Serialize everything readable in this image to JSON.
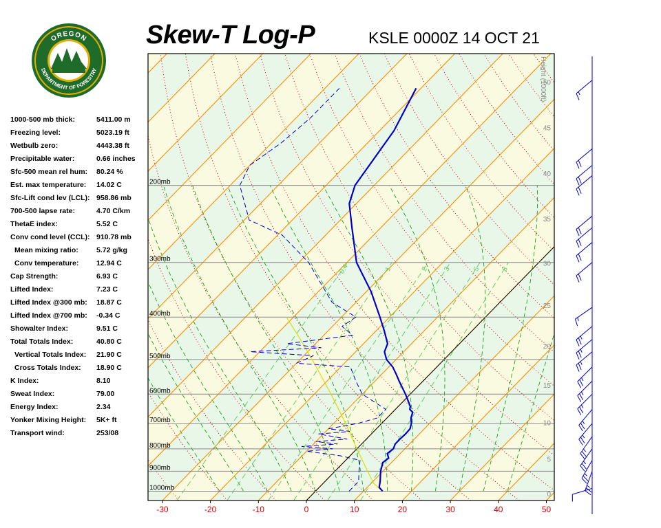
{
  "header": {
    "title": "Skew-T Log-P",
    "station_time": "KSLE 0000Z 14 OCT 21"
  },
  "logo": {
    "top_text": "OREGON",
    "bottom_text": "DEPARTMENT OF FORESTRY"
  },
  "indices": [
    {
      "label": "1000-500 mb thick:",
      "value": "5411.00 m",
      "indent": false
    },
    {
      "label": "Freezing level:",
      "value": "5023.19 ft",
      "indent": false
    },
    {
      "label": "Wetbulb zero:",
      "value": "4443.38 ft",
      "indent": false
    },
    {
      "label": "Precipitable water:",
      "value": "0.66 inches",
      "indent": false
    },
    {
      "label": "Sfc-500 mean rel hum:",
      "value": "80.24 %",
      "indent": false
    },
    {
      "label": "Est. max temperature:",
      "value": "14.02 C",
      "indent": false
    },
    {
      "label": "Sfc-Lift cond lev (LCL):",
      "value": "958.86 mb",
      "indent": false
    },
    {
      "label": "700-500 lapse rate:",
      "value": "4.70 C/km",
      "indent": false
    },
    {
      "label": "ThetaE index:",
      "value": "5.52 C",
      "indent": false
    },
    {
      "label": "Conv cond level (CCL):",
      "value": "910.78 mb",
      "indent": false
    },
    {
      "label": "Mean mixing ratio:",
      "value": "5.72 g/kg",
      "indent": true
    },
    {
      "label": "Conv temperature:",
      "value": "12.94 C",
      "indent": true
    },
    {
      "label": "Cap Strength:",
      "value": "6.93 C",
      "indent": false
    },
    {
      "label": "Lifted Index:",
      "value": "7.23 C",
      "indent": false
    },
    {
      "label": "Lifted Index @300 mb:",
      "value": "18.87 C",
      "indent": false
    },
    {
      "label": "Lifted Index @700 mb:",
      "value": "-0.34 C",
      "indent": false
    },
    {
      "label": "Showalter Index:",
      "value": "9.51 C",
      "indent": false
    },
    {
      "label": "Total Totals Index:",
      "value": "40.80 C",
      "indent": false
    },
    {
      "label": "Vertical Totals Index:",
      "value": "21.90 C",
      "indent": true
    },
    {
      "label": "Cross Totals Index:",
      "value": "18.90 C",
      "indent": true
    },
    {
      "label": "K Index:",
      "value": "8.10",
      "indent": false
    },
    {
      "label": "Sweat Index:",
      "value": "79.00",
      "indent": false
    },
    {
      "label": "Energy Index:",
      "value": "2.34",
      "indent": false
    },
    {
      "label": "Yonker Mixing Height:",
      "value": "5K+ ft",
      "indent": false
    },
    {
      "label": "Transport wind:",
      "value": "253/08",
      "indent": false
    }
  ],
  "colors": {
    "temperature": "#0000cc",
    "dewpoint": "#0000cc",
    "parcel": "#dddd00",
    "isotherm": "#ff8c00",
    "dry_adiabat": "#cc0000",
    "moist_adiabat": "#009900",
    "mixing_ratio": "#66cc66",
    "isobar": "#888888",
    "x_tick_labels": "#cc0000",
    "height_labels": "#888888",
    "background_band_a": "#e8f7e8",
    "background_band_b": "#fafae0"
  },
  "chart_data": {
    "type": "line",
    "chart_kind": "skew-t log-p",
    "x_axis": {
      "unit": "C",
      "ticks": [
        -30,
        -20,
        -10,
        0,
        10,
        20,
        30,
        40,
        50
      ]
    },
    "y_axis": {
      "scale": "log",
      "unit": "mb",
      "range": [
        1050,
        100
      ],
      "isobar_labels": [
        {
          "p": 1000,
          "label": "1000mb"
        },
        {
          "p": 900,
          "label": "900mb"
        },
        {
          "p": 800,
          "label": "800mb"
        },
        {
          "p": 700,
          "label": "700mb"
        },
        {
          "p": 600,
          "label": "600mb"
        },
        {
          "p": 500,
          "label": "500mb"
        },
        {
          "p": 400,
          "label": "400mb"
        },
        {
          "p": 300,
          "label": "300mb"
        },
        {
          "p": 200,
          "label": "200mb"
        }
      ]
    },
    "height_axis": {
      "title": "Height (1000ft)",
      "labels": [
        "0",
        "5",
        "10",
        "15",
        "20",
        "25",
        "30",
        "35",
        "40",
        "45",
        "50"
      ]
    },
    "mixing_ratio_labels": [
      "0.4",
      "1",
      "2",
      "3",
      "5",
      "8"
    ],
    "series": [
      {
        "key": "temperature",
        "points": [
          [
            1000,
            14
          ],
          [
            980,
            12.5
          ],
          [
            950,
            11.5
          ],
          [
            900,
            9.5
          ],
          [
            860,
            8.2
          ],
          [
            840,
            8.5
          ],
          [
            820,
            7.3
          ],
          [
            800,
            7.6
          ],
          [
            780,
            7.0
          ],
          [
            760,
            7.0
          ],
          [
            740,
            7.1
          ],
          [
            720,
            7.0
          ],
          [
            700,
            6.2
          ],
          [
            680,
            5.0
          ],
          [
            660,
            4.2
          ],
          [
            650,
            3.0
          ],
          [
            640,
            2.5
          ],
          [
            600,
            -1.0
          ],
          [
            560,
            -5.0
          ],
          [
            540,
            -7.0
          ],
          [
            520,
            -9.2
          ],
          [
            500,
            -12.0
          ],
          [
            480,
            -14.0
          ],
          [
            460,
            -15.0
          ],
          [
            430,
            -18.3
          ],
          [
            400,
            -22.0
          ],
          [
            350,
            -29.0
          ],
          [
            300,
            -38.0
          ],
          [
            250,
            -46.0
          ],
          [
            220,
            -51.5
          ],
          [
            200,
            -54.0
          ],
          [
            150,
            -57.0
          ],
          [
            120,
            -61.0
          ]
        ]
      },
      {
        "key": "dewpoint",
        "points": [
          [
            1000,
            7.0
          ],
          [
            950,
            7.0
          ],
          [
            900,
            5.0
          ],
          [
            850,
            3.0
          ],
          [
            830,
            -2.0
          ],
          [
            810,
            -10.0
          ],
          [
            800,
            -5.0
          ],
          [
            790,
            -12.0
          ],
          [
            780,
            -5.0
          ],
          [
            770,
            -10.0
          ],
          [
            760,
            -4.0
          ],
          [
            740,
            -11.0
          ],
          [
            730,
            -5.0
          ],
          [
            720,
            -10.0
          ],
          [
            700,
            -5.0
          ],
          [
            680,
            -2.0
          ],
          [
            650,
            -2.0
          ],
          [
            600,
            -10.0
          ],
          [
            560,
            -14.0
          ],
          [
            520,
            -18.0
          ],
          [
            510,
            -30.0
          ],
          [
            490,
            -28.0
          ],
          [
            480,
            -42.0
          ],
          [
            470,
            -28.0
          ],
          [
            460,
            -36.0
          ],
          [
            440,
            -24.0
          ],
          [
            420,
            -28.0
          ],
          [
            400,
            -27.0
          ],
          [
            370,
            -35.0
          ],
          [
            300,
            -48.0
          ],
          [
            260,
            -59.0
          ],
          [
            240,
            -69.0
          ],
          [
            200,
            -78.0
          ],
          [
            180,
            -80.0
          ],
          [
            160,
            -78.0
          ],
          [
            140,
            -77.0
          ],
          [
            120,
            -77.0
          ]
        ]
      },
      {
        "key": "parcel",
        "points": [
          [
            1000,
            14.0
          ],
          [
            959,
            10.5
          ],
          [
            900,
            6.8
          ],
          [
            850,
            3.5
          ],
          [
            800,
            0.0
          ],
          [
            700,
            -7.5
          ],
          [
            600,
            -16.5
          ],
          [
            500,
            -27.5
          ],
          [
            450,
            -34.0
          ],
          [
            400,
            -41.5
          ]
        ]
      }
    ],
    "wind_barbs": [
      {
        "p": 985,
        "dir": 253,
        "speed": 8
      },
      {
        "p": 900,
        "dir": 200,
        "speed": 25
      },
      {
        "p": 850,
        "dir": 210,
        "speed": 25
      },
      {
        "p": 800,
        "dir": 215,
        "speed": 25
      },
      {
        "p": 750,
        "dir": 215,
        "speed": 25
      },
      {
        "p": 700,
        "dir": 220,
        "speed": 25
      },
      {
        "p": 650,
        "dir": 220,
        "speed": 25
      },
      {
        "p": 600,
        "dir": 225,
        "speed": 25
      },
      {
        "p": 560,
        "dir": 225,
        "speed": 25
      },
      {
        "p": 520,
        "dir": 225,
        "speed": 25
      },
      {
        "p": 480,
        "dir": 230,
        "speed": 25
      },
      {
        "p": 450,
        "dir": 230,
        "speed": 25
      },
      {
        "p": 420,
        "dir": 230,
        "speed": 25
      },
      {
        "p": 380,
        "dir": 235,
        "speed": 15
      },
      {
        "p": 300,
        "dir": 230,
        "speed": 20
      },
      {
        "p": 270,
        "dir": 230,
        "speed": 20
      },
      {
        "p": 250,
        "dir": 230,
        "speed": 20
      },
      {
        "p": 235,
        "dir": 230,
        "speed": 20
      },
      {
        "p": 190,
        "dir": 230,
        "speed": 20
      },
      {
        "p": 180,
        "dir": 230,
        "speed": 20
      },
      {
        "p": 165,
        "dir": 230,
        "speed": 20
      },
      {
        "p": 115,
        "dir": 230,
        "speed": 15
      }
    ]
  }
}
